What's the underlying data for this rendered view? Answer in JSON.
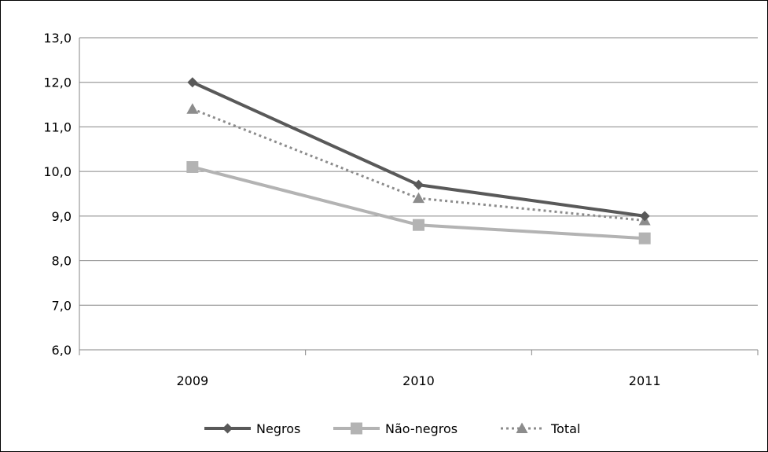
{
  "chart_data": {
    "type": "line",
    "title": "",
    "xlabel": "",
    "ylabel": "",
    "categories": [
      "2009",
      "2010",
      "2011"
    ],
    "ylim": [
      6.0,
      13.0
    ],
    "y_ticks": [
      "6,0",
      "7,0",
      "8,0",
      "9,0",
      "10,0",
      "11,0",
      "12,0",
      "13,0"
    ],
    "grid": "horizontal",
    "legend_position": "bottom",
    "series": [
      {
        "name": "Negros",
        "values": [
          12.0,
          9.7,
          9.0
        ],
        "color": "#595959",
        "marker": "diamond",
        "line_style": "solid"
      },
      {
        "name": "Não-negros",
        "values": [
          10.1,
          8.8,
          8.5
        ],
        "color": "#b3b3b3",
        "marker": "square",
        "line_style": "solid"
      },
      {
        "name": "Total",
        "values": [
          11.4,
          9.4,
          8.9
        ],
        "color": "#8c8c8c",
        "marker": "triangle",
        "line_style": "dotted"
      }
    ]
  }
}
